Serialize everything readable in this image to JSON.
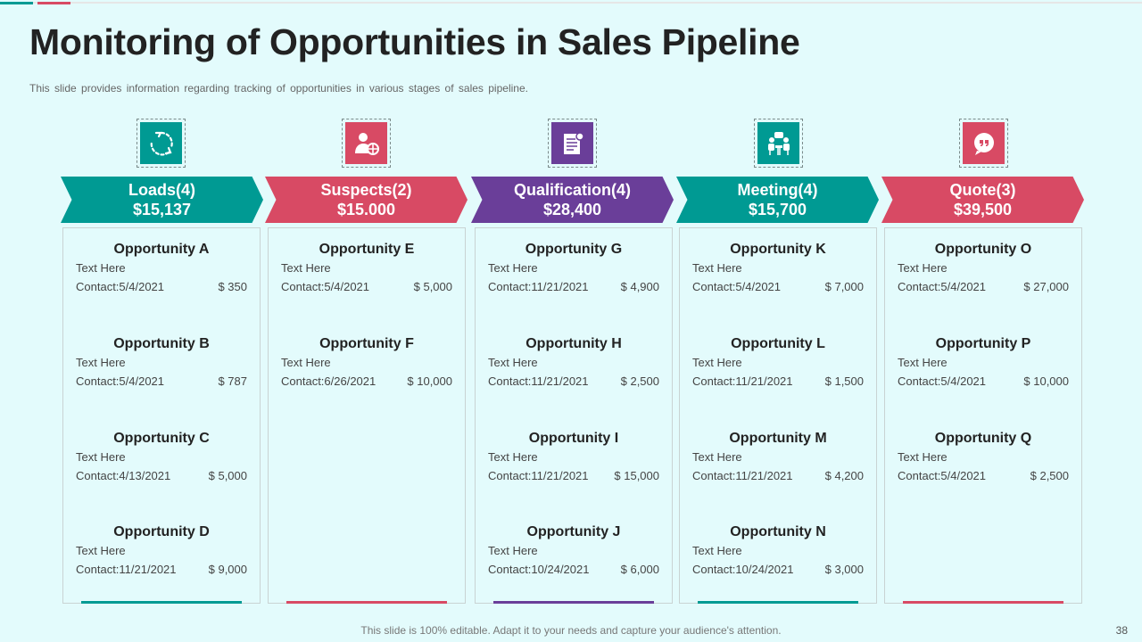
{
  "slide": {
    "title": "Monitoring of Opportunities in Sales Pipeline",
    "subtitle": "This slide provides  information  regarding  tracking of opportunities  in various  stages of sales pipeline.",
    "footer": "This slide is 100% editable. Adapt it to your needs and capture your audience's attention.",
    "page_number": "38"
  },
  "colors": {
    "teal": "#009a93",
    "pink": "#d84a64",
    "purple": "#6a3e99",
    "background": "#e3fbfc"
  },
  "stages": [
    {
      "name": "Loads(4)",
      "amount": "$15,137",
      "color": "#009a93",
      "icon": "refresh-cycle-icon",
      "opportunities": [
        {
          "title": "Opportunity A",
          "text": "Text Here",
          "contact": "Contact:5/4/2021",
          "value": "$ 350"
        },
        {
          "title": "Opportunity B",
          "text": "Text Here",
          "contact": "Contact:5/4/2021",
          "value": "$ 787"
        },
        {
          "title": "Opportunity C",
          "text": "Text Here",
          "contact": "Contact:4/13/2021",
          "value": "$ 5,000"
        },
        {
          "title": "Opportunity D",
          "text": "Text Here",
          "contact": "Contact:11/21/2021",
          "value": "$ 9,000"
        }
      ]
    },
    {
      "name": "Suspects(2)",
      "amount": "$15.000",
      "color": "#d84a64",
      "icon": "user-target-icon",
      "opportunities": [
        {
          "title": "Opportunity E",
          "text": "Text Here",
          "contact": "Contact:5/4/2021",
          "value": "$ 5,000"
        },
        {
          "title": "Opportunity F",
          "text": "Text Here",
          "contact": "Contact:6/26/2021",
          "value": "$ 10,000"
        }
      ]
    },
    {
      "name": "Qualification(4)",
      "amount": "$28,400",
      "color": "#6a3e99",
      "icon": "document-badge-icon",
      "opportunities": [
        {
          "title": "Opportunity G",
          "text": "Text Here",
          "contact": "Contact:11/21/2021",
          "value": "$ 4,900"
        },
        {
          "title": "Opportunity H",
          "text": "Text Here",
          "contact": "Contact:11/21/2021",
          "value": "$ 2,500"
        },
        {
          "title": "Opportunity I",
          "text": "Text Here",
          "contact": "Contact:11/21/2021",
          "value": "$ 15,000"
        },
        {
          "title": "Opportunity J",
          "text": "Text Here",
          "contact": "Contact:10/24/2021",
          "value": "$ 6,000"
        }
      ]
    },
    {
      "name": "Meeting(4)",
      "amount": "$15,700",
      "color": "#009a93",
      "icon": "meeting-icon",
      "opportunities": [
        {
          "title": "Opportunity K",
          "text": "Text Here",
          "contact": "Contact:5/4/2021",
          "value": "$ 7,000"
        },
        {
          "title": "Opportunity L",
          "text": "Text Here",
          "contact": "Contact:11/21/2021",
          "value": "$ 1,500"
        },
        {
          "title": "Opportunity M",
          "text": "Text Here",
          "contact": "Contact:11/21/2021",
          "value": "$ 4,200"
        },
        {
          "title": "Opportunity N",
          "text": "Text Here",
          "contact": "Contact:10/24/2021",
          "value": "$ 3,000"
        }
      ]
    },
    {
      "name": "Quote(3)",
      "amount": "$39,500",
      "color": "#d84a64",
      "icon": "quote-bubble-icon",
      "opportunities": [
        {
          "title": "Opportunity O",
          "text": "Text Here",
          "contact": "Contact:5/4/2021",
          "value": "$ 27,000"
        },
        {
          "title": "Opportunity P",
          "text": "Text Here",
          "contact": "Contact:5/4/2021",
          "value": "$ 10,000"
        },
        {
          "title": "Opportunity Q",
          "text": "Text Here",
          "contact": "Contact:5/4/2021",
          "value": "$ 2,500"
        }
      ]
    }
  ]
}
